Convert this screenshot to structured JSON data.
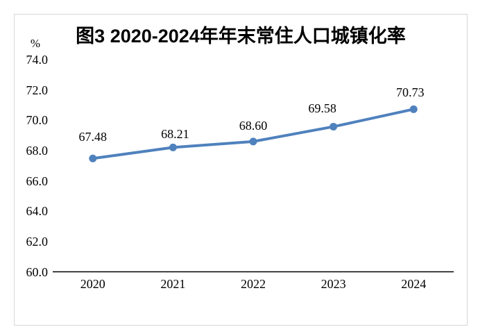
{
  "chart_data": {
    "type": "line",
    "title": "图3 2020-2024年年末常住人口城镇化率",
    "unit_label": "%",
    "categories": [
      "2020",
      "2021",
      "2022",
      "2023",
      "2024"
    ],
    "values": [
      67.48,
      68.21,
      68.6,
      69.58,
      70.73
    ],
    "data_labels": [
      "67.48",
      "68.21",
      "68.60",
      "69.58",
      "70.73"
    ],
    "xlabel": "",
    "ylabel": "%",
    "ylim": [
      60.0,
      74.0
    ],
    "ytick_step": 2.0,
    "ytick_labels": [
      "60.0",
      "62.0",
      "64.0",
      "66.0",
      "68.0",
      "70.0",
      "72.0",
      "74.0"
    ],
    "grid": false,
    "legend": "none",
    "line_color": "#4F81BD",
    "marker": "circle",
    "axis_color": "#000000",
    "text_color": "#000000",
    "frame_border_color": "#d6d6d6",
    "background_color": "#ffffff"
  }
}
